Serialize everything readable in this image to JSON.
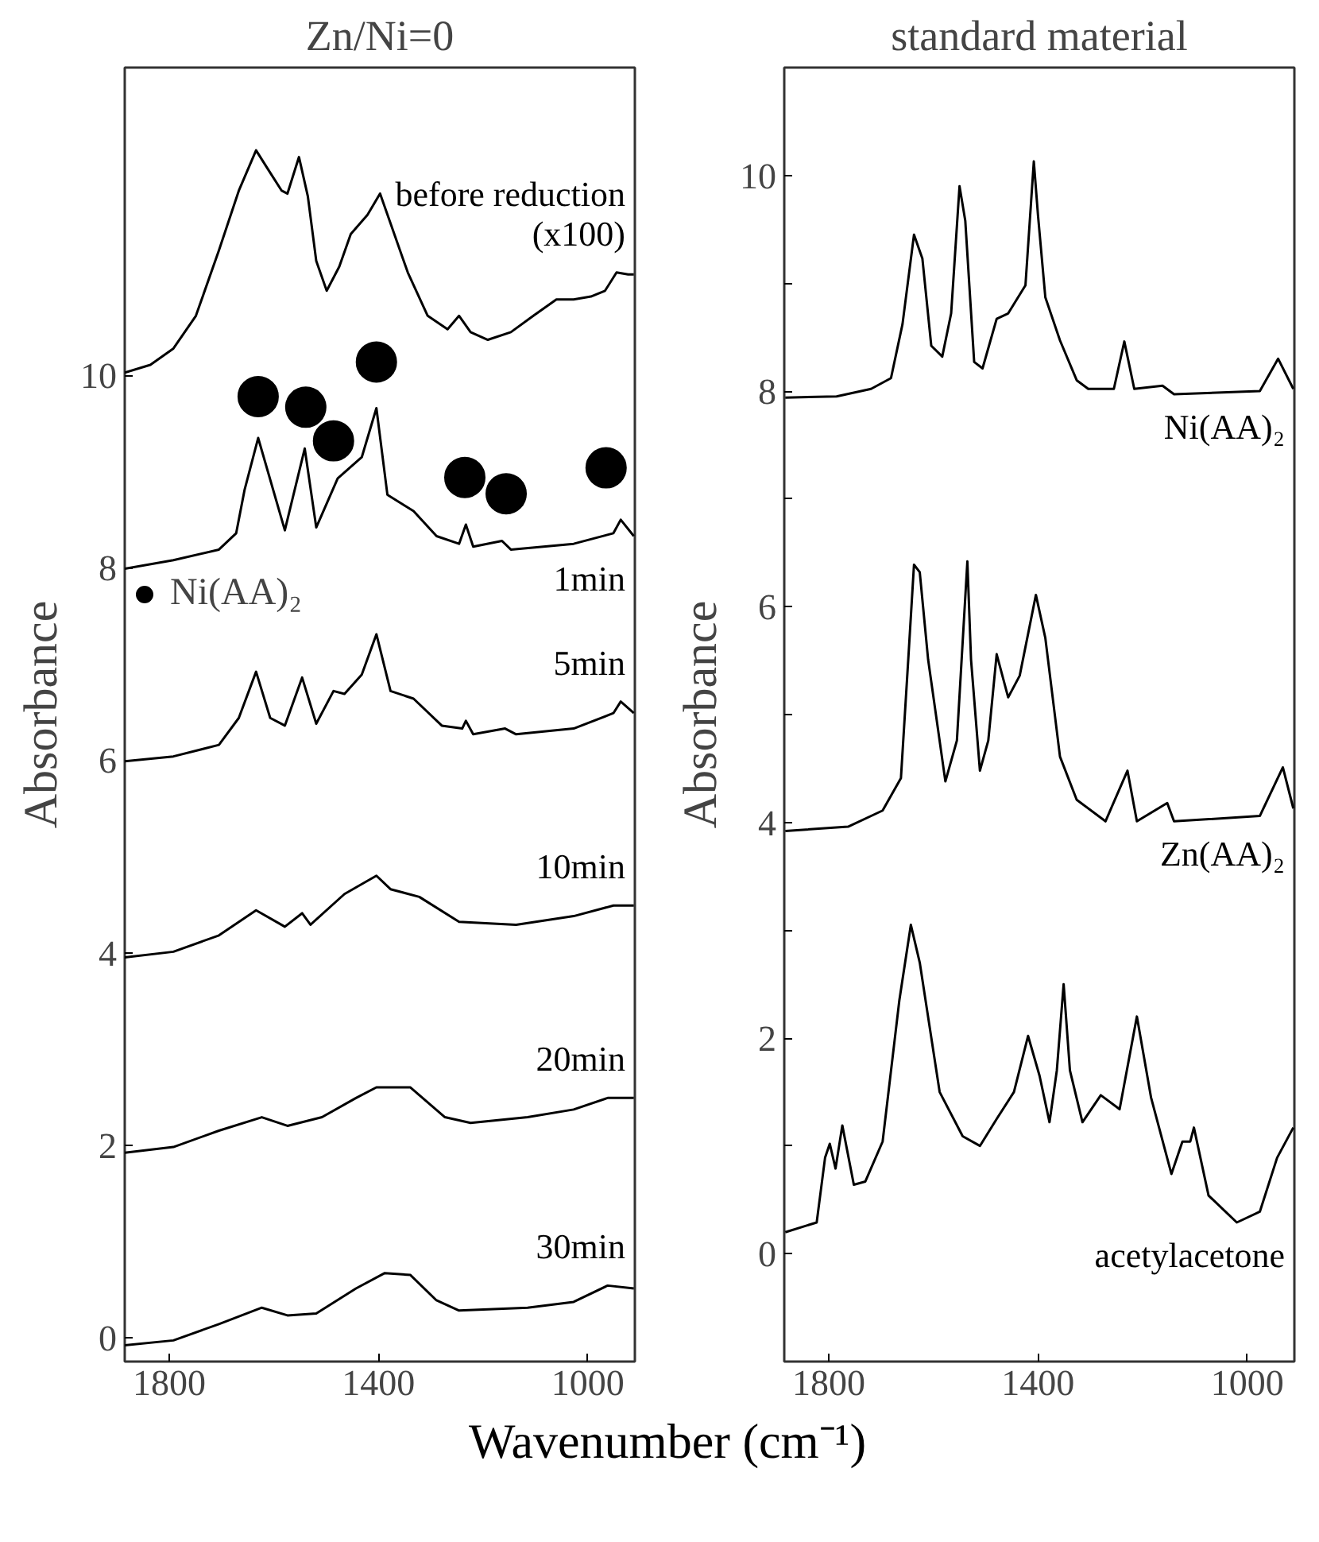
{
  "chart_data": [
    {
      "type": "line",
      "title": "Zn/Ni=0",
      "ylabel": "Absorbance",
      "xlabel": "Wavenumber (cm⁻¹)",
      "xlim": [
        1885,
        910
      ],
      "ylim": [
        -0.25,
        13.2
      ],
      "xticks": [
        1800,
        1400,
        1000
      ],
      "yticks": [
        0,
        2,
        4,
        6,
        8,
        10
      ],
      "legend": "left",
      "series": [
        {
          "name": "before reduction\n(x100)",
          "color": "#000000",
          "x": [
            1885,
            1836,
            1792,
            1749,
            1705,
            1667,
            1634,
            1612,
            1585,
            1574,
            1552,
            1535,
            1519,
            1499,
            1475,
            1453,
            1421,
            1397,
            1377,
            1344,
            1306,
            1268,
            1246,
            1224,
            1191,
            1147,
            1104,
            1060,
            1027,
            994,
            967,
            945,
            923,
            912
          ],
          "values": [
            10.03,
            10.11,
            10.28,
            10.62,
            11.3,
            11.92,
            12.34,
            12.15,
            11.92,
            11.89,
            12.27,
            11.86,
            11.19,
            10.88,
            11.13,
            11.47,
            11.67,
            11.89,
            11.58,
            11.07,
            10.62,
            10.48,
            10.62,
            10.45,
            10.37,
            10.45,
            10.62,
            10.79,
            10.79,
            10.82,
            10.88,
            11.07,
            11.05,
            11.05
          ]
        },
        {
          "name": "1min",
          "color": "#000000",
          "x": [
            1885,
            1792,
            1705,
            1672,
            1656,
            1630,
            1579,
            1541,
            1519,
            1478,
            1432,
            1404,
            1383,
            1333,
            1289,
            1246,
            1233,
            1219,
            1164,
            1147,
            1027,
            951,
            937,
            912
          ],
          "values": [
            7.99,
            8.08,
            8.19,
            8.36,
            8.81,
            9.35,
            8.39,
            9.24,
            8.42,
            8.93,
            9.15,
            9.66,
            8.76,
            8.59,
            8.33,
            8.25,
            8.45,
            8.22,
            8.28,
            8.19,
            8.25,
            8.36,
            8.5,
            8.33
          ]
        },
        {
          "name": "5min",
          "color": "#000000",
          "x": [
            1885,
            1792,
            1705,
            1667,
            1634,
            1607,
            1579,
            1546,
            1519,
            1486,
            1465,
            1432,
            1404,
            1377,
            1333,
            1279,
            1240,
            1233,
            1219,
            1158,
            1137,
            1027,
            951,
            937,
            912
          ],
          "values": [
            5.99,
            6.04,
            6.16,
            6.44,
            6.92,
            6.44,
            6.36,
            6.86,
            6.38,
            6.72,
            6.69,
            6.89,
            7.31,
            6.72,
            6.64,
            6.36,
            6.33,
            6.41,
            6.27,
            6.33,
            6.27,
            6.33,
            6.49,
            6.61,
            6.49
          ]
        },
        {
          "name": "10min",
          "color": "#000000",
          "x": [
            1885,
            1792,
            1705,
            1634,
            1579,
            1546,
            1530,
            1465,
            1404,
            1377,
            1322,
            1246,
            1137,
            1027,
            951,
            912
          ],
          "values": [
            3.95,
            4.01,
            4.18,
            4.44,
            4.27,
            4.41,
            4.29,
            4.61,
            4.8,
            4.66,
            4.58,
            4.32,
            4.29,
            4.38,
            4.49,
            4.49
          ]
        },
        {
          "name": "20min",
          "color": "#000000",
          "x": [
            1885,
            1792,
            1705,
            1623,
            1574,
            1508,
            1443,
            1404,
            1339,
            1273,
            1224,
            1115,
            1027,
            962,
            912
          ],
          "values": [
            1.92,
            1.98,
            2.15,
            2.29,
            2.2,
            2.29,
            2.49,
            2.6,
            2.6,
            2.29,
            2.23,
            2.29,
            2.37,
            2.49,
            2.49
          ]
        },
        {
          "name": "30min",
          "color": "#000000",
          "x": [
            1885,
            1792,
            1705,
            1623,
            1574,
            1519,
            1443,
            1388,
            1339,
            1290,
            1246,
            1115,
            1027,
            962,
            912
          ],
          "values": [
            -0.08,
            -0.03,
            0.14,
            0.31,
            0.23,
            0.25,
            0.51,
            0.67,
            0.65,
            0.39,
            0.28,
            0.31,
            0.37,
            0.54,
            0.51
          ]
        },
        {
          "name": "Ni(AA)₂",
          "type": "scatter",
          "marker": "circle",
          "color": "#000000",
          "x": [
            1630,
            1539,
            1486,
            1404,
            1235,
            1156,
            965
          ],
          "values": [
            9.78,
            9.67,
            9.32,
            10.14,
            8.94,
            8.77,
            9.04
          ]
        }
      ]
    },
    {
      "type": "line",
      "title": "standard material",
      "ylabel": "Absorbance",
      "xlim": [
        1885,
        910
      ],
      "ylim": [
        -1,
        11
      ],
      "xticks": [
        1800,
        1400,
        1000
      ],
      "yticks": [
        0,
        {
          "value": 1,
          "label": null
        },
        2,
        {
          "value": 3,
          "label": null
        },
        4,
        {
          "value": 5,
          "label": null
        },
        6,
        {
          "value": 7,
          "label": null
        },
        8,
        {
          "value": 9,
          "label": null
        },
        10
      ],
      "series": [
        {
          "name": "Ni(AA)₂",
          "color": "#000000",
          "x": [
            1883,
            1785,
            1719,
            1681,
            1659,
            1637,
            1621,
            1604,
            1583,
            1566,
            1550,
            1539,
            1522,
            1506,
            1479,
            1457,
            1424,
            1408,
            1400,
            1386,
            1358,
            1326,
            1304,
            1255,
            1235,
            1216,
            1162,
            1140,
            976,
            941,
            912
          ],
          "values": [
            7.94,
            7.95,
            8.02,
            8.12,
            8.62,
            9.45,
            9.23,
            8.42,
            8.32,
            8.72,
            9.9,
            9.58,
            8.27,
            8.21,
            8.67,
            8.72,
            8.98,
            10.13,
            9.63,
            8.87,
            8.47,
            8.1,
            8.02,
            8.02,
            8.46,
            8.02,
            8.05,
            7.97,
            8.0,
            8.3,
            8.02
          ]
        },
        {
          "name": "Zn(AA)₂",
          "color": "#000000",
          "x": [
            1883,
            1763,
            1697,
            1662,
            1648,
            1637,
            1626,
            1610,
            1577,
            1555,
            1535,
            1528,
            1511,
            1495,
            1479,
            1457,
            1435,
            1404,
            1386,
            1358,
            1326,
            1271,
            1229,
            1211,
            1153,
            1140,
            976,
            932,
            912
          ],
          "values": [
            3.92,
            3.96,
            4.11,
            4.41,
            5.51,
            6.39,
            6.32,
            5.51,
            4.38,
            4.76,
            6.42,
            5.51,
            4.48,
            4.76,
            5.56,
            5.16,
            5.36,
            6.11,
            5.71,
            4.61,
            4.21,
            4.01,
            4.48,
            4.01,
            4.18,
            4.01,
            4.06,
            4.51,
            4.13
          ]
        },
        {
          "name": "acetylacetone",
          "color": "#000000",
          "x": [
            1883,
            1823,
            1807,
            1798,
            1787,
            1774,
            1752,
            1730,
            1697,
            1665,
            1643,
            1626,
            1588,
            1544,
            1511,
            1479,
            1446,
            1419,
            1397,
            1378,
            1364,
            1351,
            1339,
            1315,
            1280,
            1244,
            1211,
            1184,
            1145,
            1124,
            1109,
            1102,
            1074,
            1020,
            976,
            943,
            912
          ],
          "values": [
            0.2,
            0.29,
            0.89,
            1.02,
            0.79,
            1.19,
            0.64,
            0.67,
            1.04,
            2.35,
            3.05,
            2.7,
            1.5,
            1.09,
            1.0,
            1.25,
            1.5,
            2.02,
            1.65,
            1.22,
            1.7,
            2.5,
            1.7,
            1.22,
            1.47,
            1.34,
            2.2,
            1.45,
            0.74,
            1.04,
            1.04,
            1.17,
            0.54,
            0.29,
            0.39,
            0.89,
            1.17
          ]
        }
      ]
    }
  ]
}
